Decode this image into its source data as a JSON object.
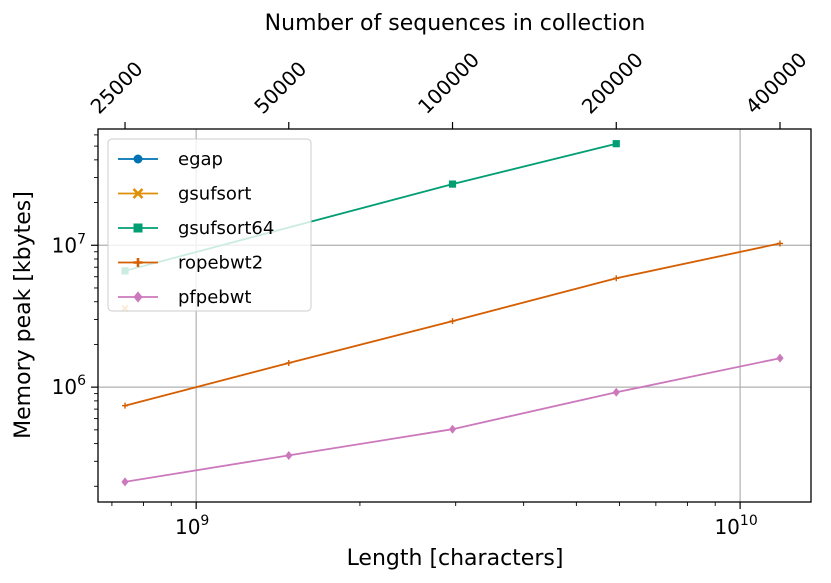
{
  "chart_data": {
    "type": "line",
    "xlabel": "Length [characters]",
    "ylabel": "Memory peak [kbytes]",
    "top_xlabel": "Number of sequences in collection",
    "x_scale": "log",
    "y_scale": "log",
    "xlim": [
      660000000,
      13500000000
    ],
    "ylim": [
      155000,
      66000000
    ],
    "grid": true,
    "legend_position": "upper-left",
    "x_ticks": [
      {
        "value": 1000000000,
        "label": "10",
        "exp": "9"
      },
      {
        "value": 10000000000,
        "label": "10",
        "exp": "10"
      }
    ],
    "y_ticks": [
      {
        "value": 1000000,
        "label": "10",
        "exp": "6"
      },
      {
        "value": 10000000,
        "label": "10",
        "exp": "7"
      }
    ],
    "top_ticks": [
      {
        "value": 740000000,
        "label": "25000"
      },
      {
        "value": 1480000000,
        "label": "50000"
      },
      {
        "value": 2960000000,
        "label": "100000"
      },
      {
        "value": 5920000000,
        "label": "200000"
      },
      {
        "value": 11840000000,
        "label": "400000"
      }
    ],
    "series": [
      {
        "name": "egap",
        "color": "#0173b2",
        "marker": "circle",
        "x": [
          740000000
        ],
        "y": [
          6600000
        ]
      },
      {
        "name": "gsufsort",
        "color": "#de8f05",
        "marker": "x",
        "x": [
          740000000
        ],
        "y": [
          3600000
        ]
      },
      {
        "name": "gsufsort64",
        "color": "#029e73",
        "marker": "square",
        "x": [
          740000000,
          2960000000,
          5920000000
        ],
        "y": [
          6600000,
          27000000,
          52000000
        ]
      },
      {
        "name": "ropebwt2",
        "color": "#d55e00",
        "marker": "plus",
        "x": [
          740000000,
          1480000000,
          2960000000,
          5920000000,
          11840000000
        ],
        "y": [
          740000,
          1480000,
          2920000,
          5850000,
          10300000
        ]
      },
      {
        "name": "pfpebwt",
        "color": "#cc78bc",
        "marker": "diamond",
        "x": [
          740000000,
          1480000000,
          2960000000,
          5920000000,
          11840000000
        ],
        "y": [
          215000,
          330000,
          505000,
          920000,
          1600000
        ]
      }
    ]
  }
}
